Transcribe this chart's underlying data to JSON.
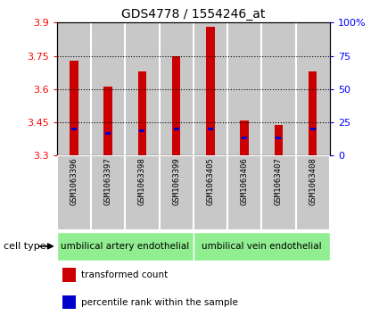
{
  "title": "GDS4778 / 1554246_at",
  "samples": [
    "GSM1063396",
    "GSM1063397",
    "GSM1063398",
    "GSM1063399",
    "GSM1063405",
    "GSM1063406",
    "GSM1063407",
    "GSM1063408"
  ],
  "red_values": [
    3.73,
    3.61,
    3.68,
    3.75,
    3.88,
    3.46,
    3.44,
    3.68
  ],
  "blue_values": [
    3.42,
    3.4,
    3.41,
    3.42,
    3.42,
    3.38,
    3.38,
    3.42
  ],
  "ymin": 3.3,
  "ymax": 3.9,
  "yticks": [
    3.3,
    3.45,
    3.6,
    3.75,
    3.9
  ],
  "ytick_labels": [
    "3.3",
    "3.45",
    "3.6",
    "3.75",
    "3.9"
  ],
  "right_yticks": [
    0,
    25,
    50,
    75,
    100
  ],
  "right_ytick_labels": [
    "0",
    "25",
    "50",
    "75",
    "100%"
  ],
  "bar_width": 0.25,
  "bar_color": "#cc0000",
  "blue_color": "#0000cc",
  "group1_label": "umbilical artery endothelial",
  "group2_label": "umbilical vein endothelial",
  "group1_indices": [
    0,
    1,
    2,
    3
  ],
  "group2_indices": [
    4,
    5,
    6,
    7
  ],
  "cell_type_label": "cell type",
  "legend1": "transformed count",
  "legend2": "percentile rank within the sample",
  "col_bg": "#c8c8c8",
  "group_bg": "#90ee90",
  "plot_bg": "#ffffff"
}
